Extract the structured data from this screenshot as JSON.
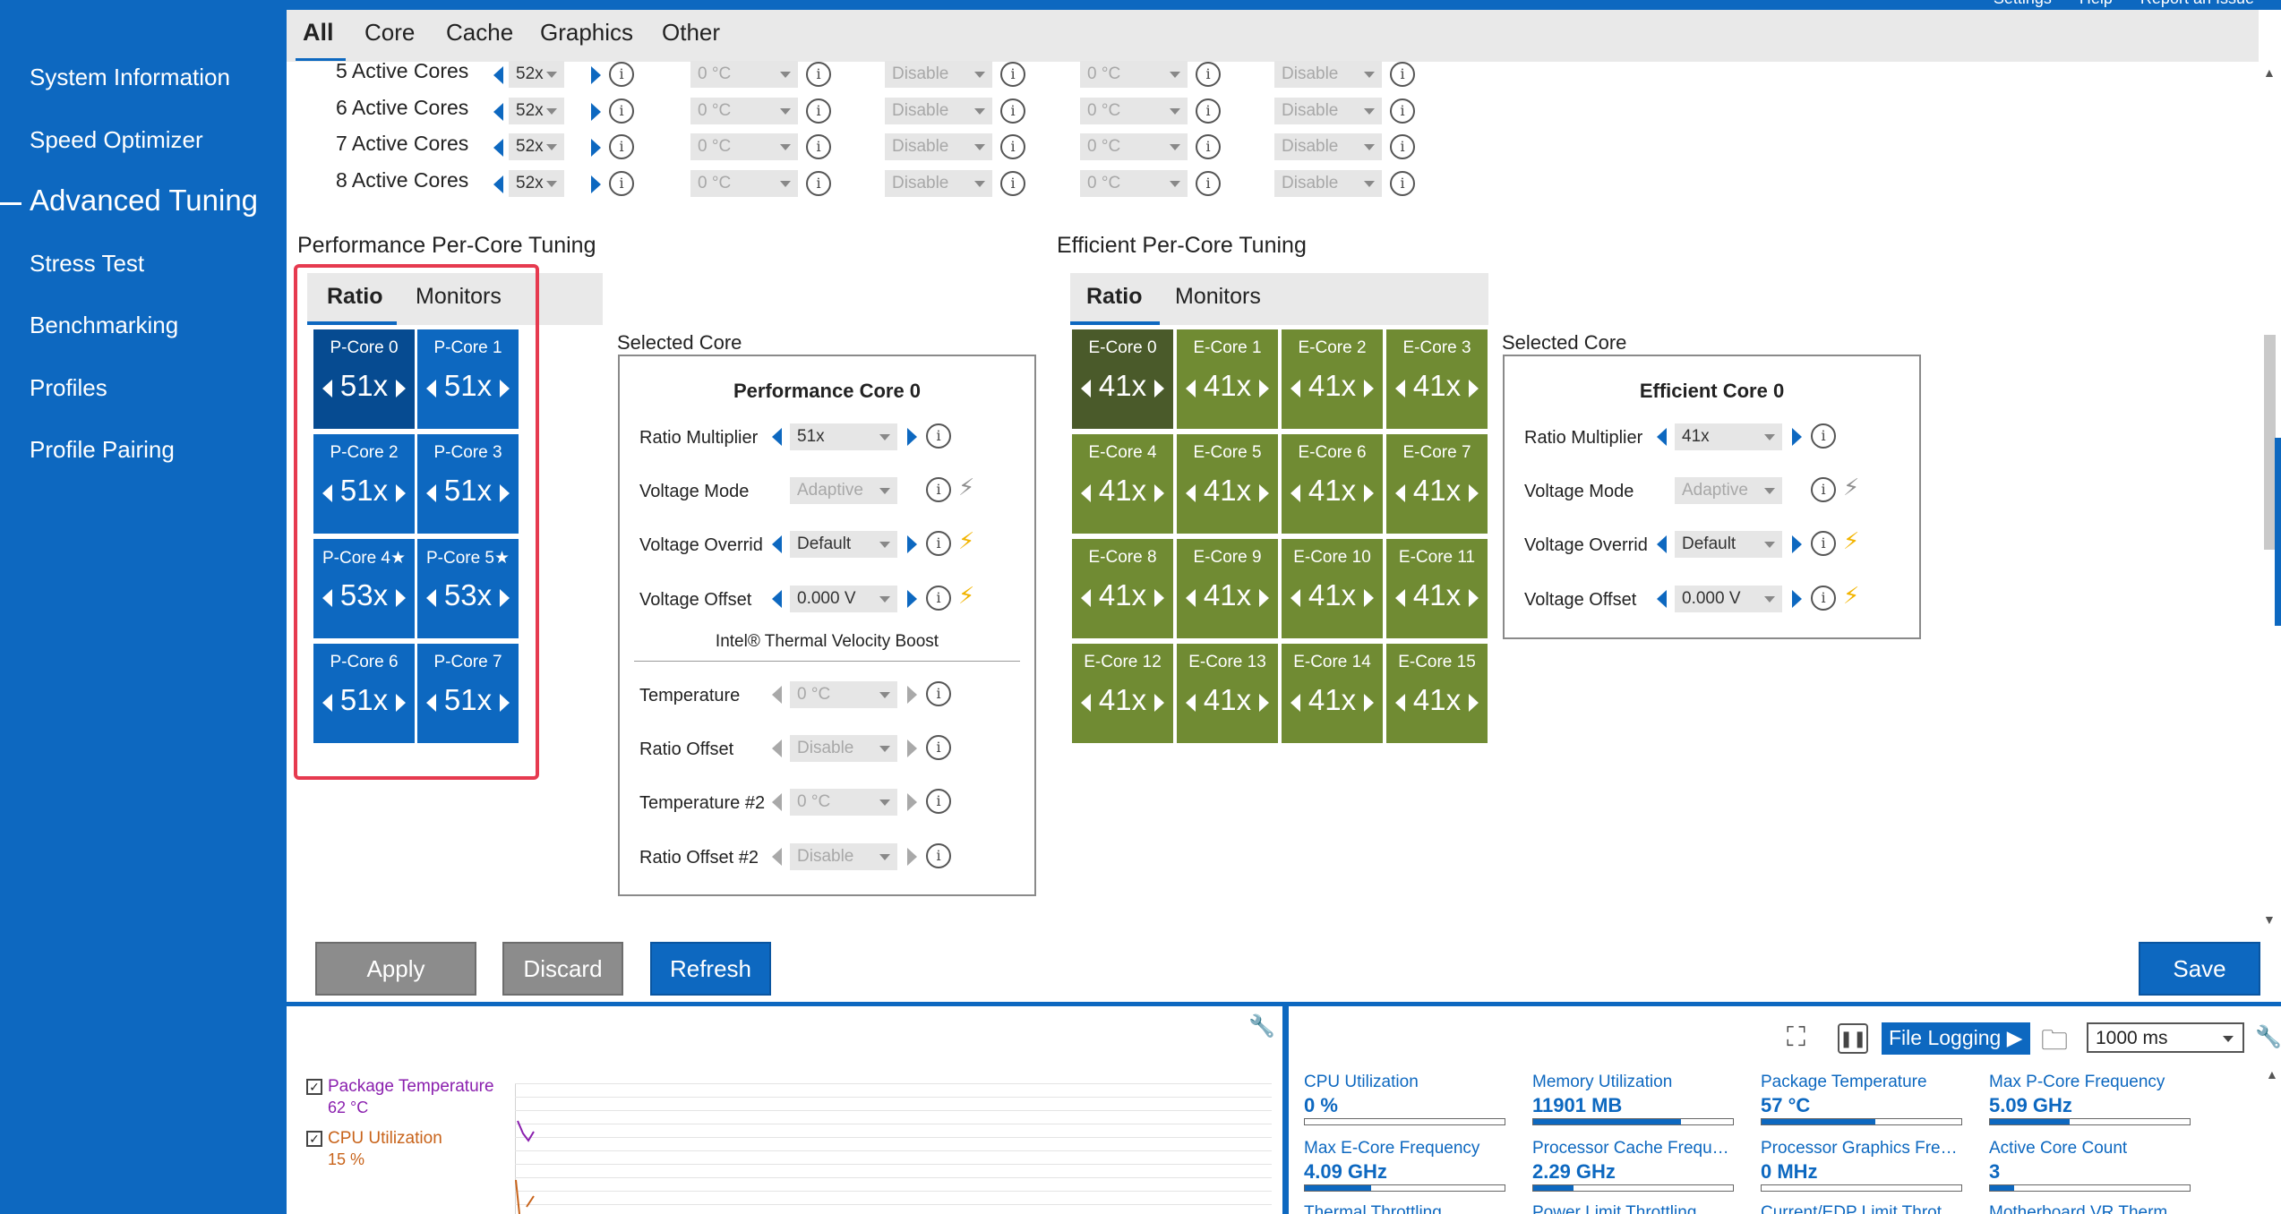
{
  "top_links": [
    "Settings",
    "Help",
    "Report an Issue"
  ],
  "sidebar": {
    "items": [
      {
        "label": "System Information"
      },
      {
        "label": "Speed Optimizer"
      },
      {
        "label": "Advanced Tuning"
      },
      {
        "label": "Stress Test"
      },
      {
        "label": "Benchmarking"
      },
      {
        "label": "Profiles"
      },
      {
        "label": "Profile Pairing"
      }
    ],
    "active_index": 2
  },
  "tabs": [
    "All",
    "Core",
    "Cache",
    "Graphics",
    "Other"
  ],
  "active_cores": [
    {
      "label": "5 Active Cores",
      "ratio": "52x",
      "temp1": "0 °C",
      "offset1": "Disable",
      "temp2": "0 °C",
      "offset2": "Disable"
    },
    {
      "label": "6 Active Cores",
      "ratio": "52x",
      "temp1": "0 °C",
      "offset1": "Disable",
      "temp2": "0 °C",
      "offset2": "Disable"
    },
    {
      "label": "7 Active Cores",
      "ratio": "52x",
      "temp1": "0 °C",
      "offset1": "Disable",
      "temp2": "0 °C",
      "offset2": "Disable"
    },
    {
      "label": "8 Active Cores",
      "ratio": "52x",
      "temp1": "0 °C",
      "offset1": "Disable",
      "temp2": "0 °C",
      "offset2": "Disable"
    }
  ],
  "perf": {
    "title": "Performance Per-Core Tuning",
    "tabs": [
      "Ratio",
      "Monitors"
    ],
    "cores": [
      {
        "name": "P-Core 0",
        "ratio": "51x"
      },
      {
        "name": "P-Core 1",
        "ratio": "51x"
      },
      {
        "name": "P-Core 2",
        "ratio": "51x"
      },
      {
        "name": "P-Core 3",
        "ratio": "51x"
      },
      {
        "name": "P-Core 4★",
        "ratio": "53x"
      },
      {
        "name": "P-Core 5★",
        "ratio": "53x"
      },
      {
        "name": "P-Core 6",
        "ratio": "51x"
      },
      {
        "name": "P-Core 7",
        "ratio": "51x"
      }
    ],
    "selected_label": "Selected Core",
    "selected_title": "Performance Core 0",
    "props": {
      "ratio_label": "Ratio Multiplier",
      "ratio_value": "51x",
      "vmode_label": "Voltage Mode",
      "vmode_value": "Adaptive",
      "vover_label": "Voltage Overrid",
      "vover_value": "Default",
      "voff_label": "Voltage Offset",
      "voff_value": "0.000 V"
    },
    "tvb": {
      "title": "Intel® Thermal Velocity Boost",
      "temp_label": "Temperature",
      "temp_value": "0 °C",
      "roff_label": "Ratio Offset",
      "roff_value": "Disable",
      "temp2_label": "Temperature #2",
      "temp2_value": "0 °C",
      "roff2_label": "Ratio Offset #2",
      "roff2_value": "Disable"
    }
  },
  "eff": {
    "title": "Efficient Per-Core Tuning",
    "tabs": [
      "Ratio",
      "Monitors"
    ],
    "cores": [
      {
        "name": "E-Core 0",
        "ratio": "41x"
      },
      {
        "name": "E-Core 1",
        "ratio": "41x"
      },
      {
        "name": "E-Core 2",
        "ratio": "41x"
      },
      {
        "name": "E-Core 3",
        "ratio": "41x"
      },
      {
        "name": "E-Core 4",
        "ratio": "41x"
      },
      {
        "name": "E-Core 5",
        "ratio": "41x"
      },
      {
        "name": "E-Core 6",
        "ratio": "41x"
      },
      {
        "name": "E-Core 7",
        "ratio": "41x"
      },
      {
        "name": "E-Core 8",
        "ratio": "41x"
      },
      {
        "name": "E-Core 9",
        "ratio": "41x"
      },
      {
        "name": "E-Core 10",
        "ratio": "41x"
      },
      {
        "name": "E-Core 11",
        "ratio": "41x"
      },
      {
        "name": "E-Core 12",
        "ratio": "41x"
      },
      {
        "name": "E-Core 13",
        "ratio": "41x"
      },
      {
        "name": "E-Core 14",
        "ratio": "41x"
      },
      {
        "name": "E-Core 15",
        "ratio": "41x"
      }
    ],
    "selected_label": "Selected Core",
    "selected_title": "Efficient Core 0",
    "props": {
      "ratio_label": "Ratio Multiplier",
      "ratio_value": "41x",
      "vmode_label": "Voltage Mode",
      "vmode_value": "Adaptive",
      "vover_label": "Voltage Overrid",
      "vover_value": "Default",
      "voff_label": "Voltage Offset",
      "voff_value": "0.000 V"
    }
  },
  "actions": {
    "apply": "Apply",
    "discard": "Discard",
    "refresh": "Refresh",
    "save": "Save"
  },
  "graph_legend": [
    {
      "name": "Package Temperature",
      "value": "62 °C",
      "color": "#8a1fae"
    },
    {
      "name": "CPU Utilization",
      "value": "15 %",
      "color": "#c8631a"
    }
  ],
  "monitor_controls": {
    "file_logging": "File Logging",
    "interval": "1000 ms"
  },
  "monitors": [
    {
      "name": "CPU Utilization",
      "value": "0 %",
      "fill": 0.0
    },
    {
      "name": "Memory Utilization",
      "value": "11901  MB",
      "fill": 0.74
    },
    {
      "name": "Package Temperature",
      "value": "57 °C",
      "fill": 0.57
    },
    {
      "name": "Max P-Core Frequency",
      "value": "5.09 GHz",
      "fill": 0.4
    },
    {
      "name": "Max E-Core Frequency",
      "value": "4.09 GHz",
      "fill": 0.33
    },
    {
      "name": "Processor Cache Freque...",
      "value": "2.29 GHz",
      "fill": 0.2
    },
    {
      "name": "Processor Graphics Freq...",
      "value": "0 MHz",
      "fill": 0.0
    },
    {
      "name": "Active Core Count",
      "value": "3",
      "fill": 0.12
    },
    {
      "name": "Thermal Throttling",
      "value": "",
      "fill": 0
    },
    {
      "name": "Power Limit Throttling",
      "value": "",
      "fill": 0
    },
    {
      "name": "Current/EDP Limit Throt...",
      "value": "",
      "fill": 0
    },
    {
      "name": "Motherboard VR Therm...",
      "value": "",
      "fill": 0
    }
  ],
  "colors": {
    "accent": "#0d68c0",
    "pcore": "#0d68c0",
    "pcore_selected": "#064b91",
    "ecore": "#708b33",
    "ecore_selected": "#4a5a2a",
    "highlight": "#e63a4f",
    "bolt": "#f2b400"
  }
}
